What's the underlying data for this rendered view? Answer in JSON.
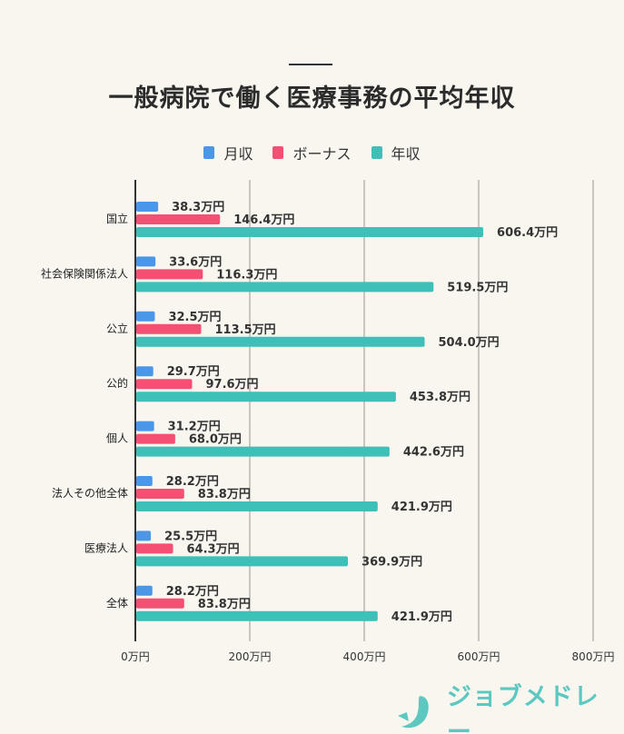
{
  "chart_data": {
    "type": "bar",
    "orientation": "horizontal",
    "title": "一般病院で働く医療事務の平均年収",
    "categories": [
      "国立",
      "社会保険関係法人",
      "公立",
      "公的",
      "個人",
      "法人その他全体",
      "医療法人",
      "全体"
    ],
    "series": [
      {
        "name": "月収",
        "color": "#4a96e8",
        "values": [
          38.3,
          33.6,
          32.5,
          29.7,
          31.2,
          28.2,
          25.5,
          28.2
        ],
        "labels": [
          "38.3万円",
          "33.6万円",
          "32.5万円",
          "29.7万円",
          "31.2万円",
          "28.2万円",
          "25.5万円",
          "28.2万円"
        ]
      },
      {
        "name": "ボーナス",
        "color": "#f55073",
        "values": [
          146.4,
          116.3,
          113.5,
          97.6,
          68.0,
          83.8,
          64.3,
          83.8
        ],
        "labels": [
          "146.4万円",
          "116.3万円",
          "113.5万円",
          "97.6万円",
          "68.0万円",
          "83.8万円",
          "64.3万円",
          "83.8万円"
        ]
      },
      {
        "name": "年収",
        "color": "#3ebfb8",
        "values": [
          606.4,
          519.5,
          504.0,
          453.8,
          442.6,
          421.9,
          369.9,
          421.9
        ],
        "labels": [
          "606.4万円",
          "519.5万円",
          "504.0万円",
          "453.8万円",
          "442.6万円",
          "421.9万円",
          "369.9万円",
          "421.9万円"
        ]
      }
    ],
    "xlim": [
      0,
      800
    ],
    "xticks": [
      0,
      200,
      400,
      600,
      800
    ],
    "xtick_labels": [
      "0万円",
      "200万円",
      "400万円",
      "600万円",
      "800万円"
    ],
    "grid": true,
    "legend_placement": "top-center"
  },
  "brand": {
    "logo_text": "ジョブメドレー",
    "color": "#5cc8c0"
  }
}
